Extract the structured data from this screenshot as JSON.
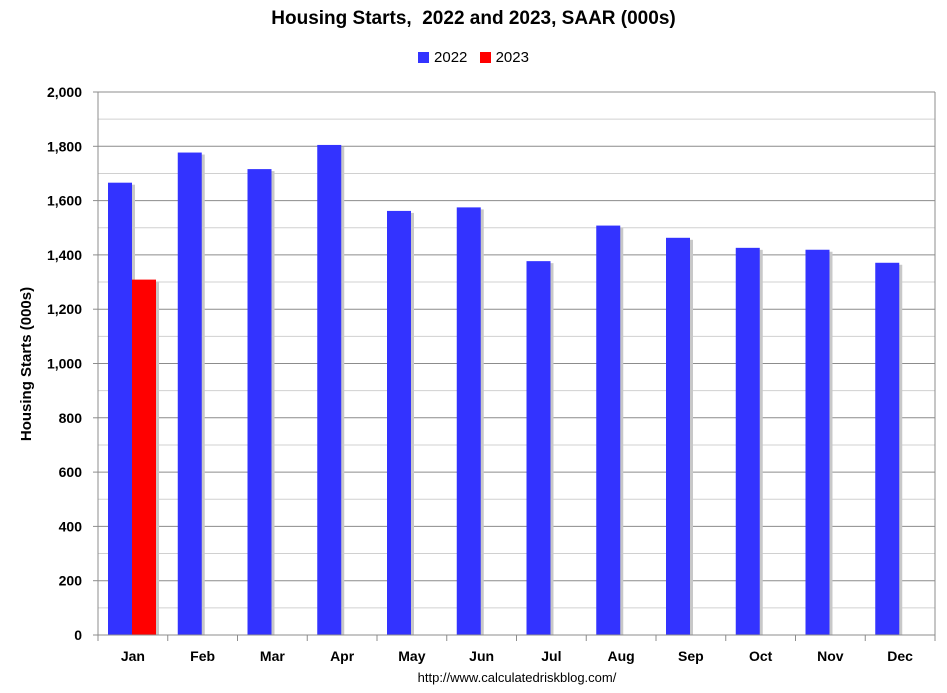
{
  "chart_data": {
    "type": "bar",
    "title": "Housing Starts,  2022 and 2023, SAAR (000s)",
    "ylabel": "Housing Starts (000s)",
    "xlabel": "",
    "categories": [
      "Jan",
      "Feb",
      "Mar",
      "Apr",
      "May",
      "Jun",
      "Jul",
      "Aug",
      "Sep",
      "Oct",
      "Nov",
      "Dec"
    ],
    "series": [
      {
        "name": "2022",
        "color": "#3333ff",
        "values": [
          1666,
          1777,
          1716,
          1805,
          1562,
          1575,
          1377,
          1508,
          1463,
          1426,
          1419,
          1371
        ]
      },
      {
        "name": "2023",
        "color": "#ff0000",
        "values": [
          1309,
          null,
          null,
          null,
          null,
          null,
          null,
          null,
          null,
          null,
          null,
          null
        ]
      }
    ],
    "ylim": [
      0,
      2000
    ],
    "yticks": [
      0,
      200,
      400,
      600,
      800,
      1000,
      1200,
      1400,
      1600,
      1800,
      2000
    ],
    "ytick_labels": [
      "0",
      "200",
      "400",
      "600",
      "800",
      "1,000",
      "1,200",
      "1,400",
      "1,600",
      "1,800",
      "2,000"
    ],
    "grid": true,
    "legend_position": "top-center"
  },
  "source": "http://www.calculatedriskblog.com/"
}
